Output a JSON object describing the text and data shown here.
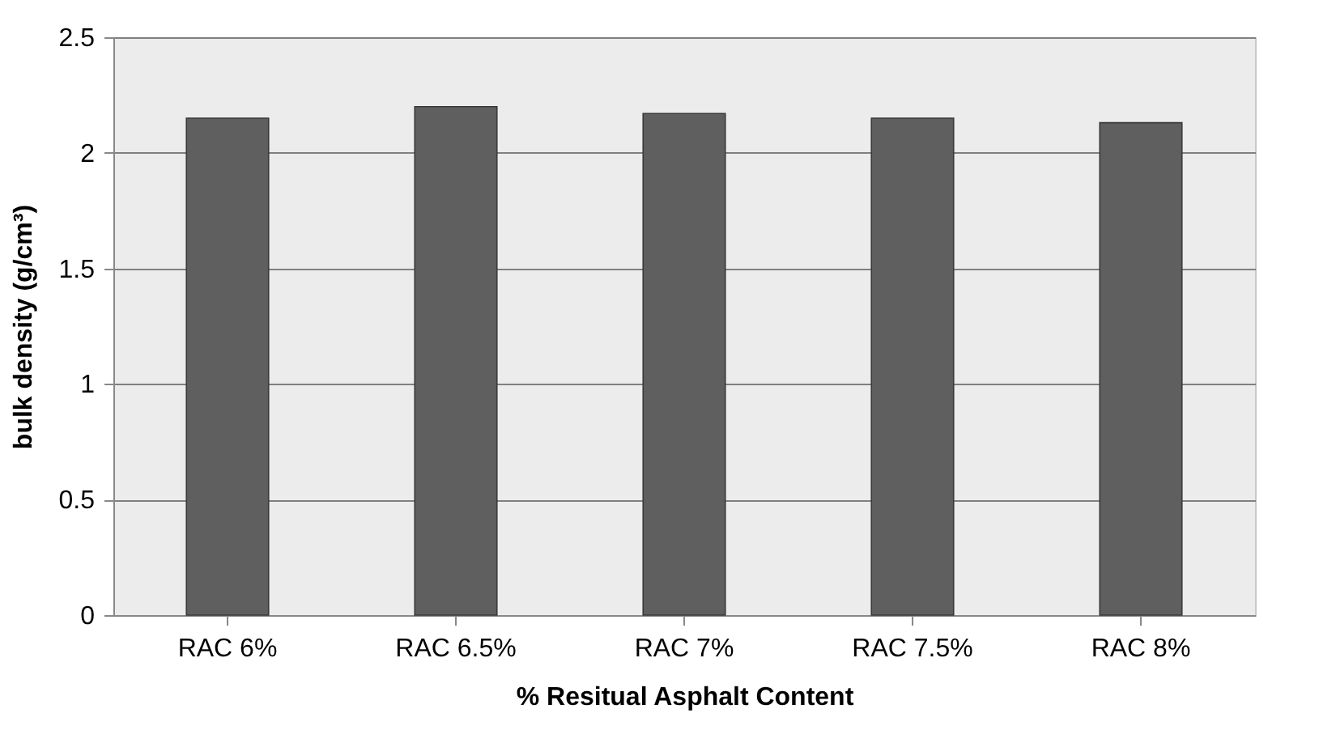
{
  "chart_data": {
    "type": "bar",
    "xlabel": "% Resitual Asphalt Content",
    "ylabel": "bulk density (g/cm³)",
    "categories": [
      "RAC 6%",
      "RAC 6.5%",
      "RAC 7%",
      "RAC 7.5%",
      "RAC 8%"
    ],
    "values": [
      2.15,
      2.2,
      2.17,
      2.15,
      2.13
    ],
    "color": "#5f5f5f",
    "ylim": [
      0,
      2.5
    ],
    "yticks": [
      0,
      0.5,
      1,
      1.5,
      2,
      2.5
    ],
    "grid": "y"
  }
}
